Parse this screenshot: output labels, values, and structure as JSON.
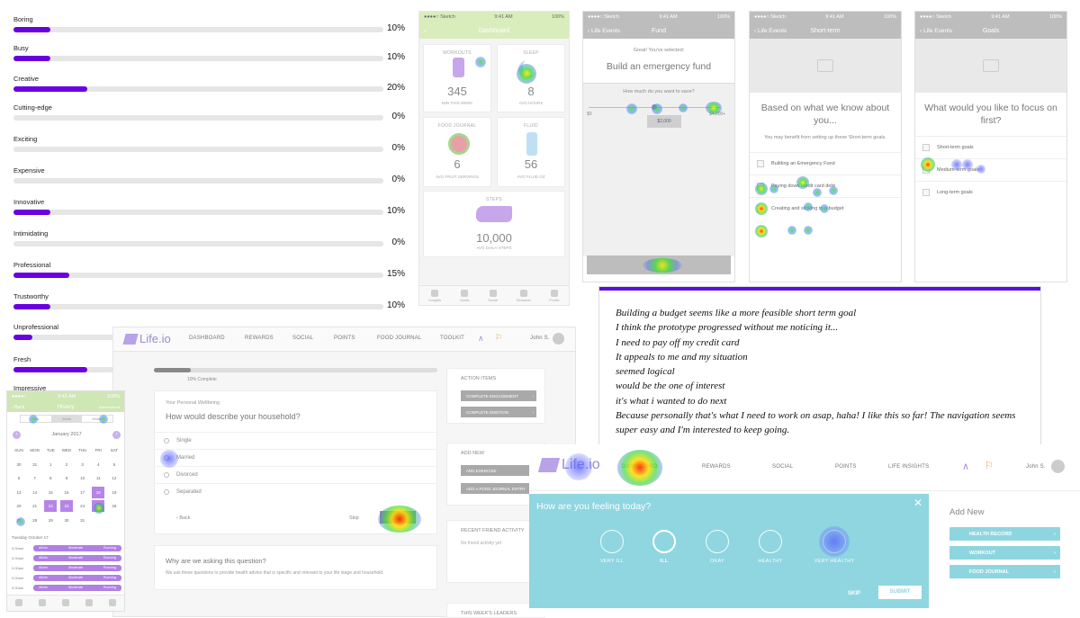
{
  "word_bars": [
    {
      "label": "Boring",
      "pct": "10%",
      "value": 10
    },
    {
      "label": "Busy",
      "pct": "10%",
      "value": 10
    },
    {
      "label": "Creative",
      "pct": "20%",
      "value": 20
    },
    {
      "label": "Cutting-edge",
      "pct": "0%",
      "value": 0
    },
    {
      "label": "Exciting",
      "pct": "0%",
      "value": 0
    },
    {
      "label": "Expensive",
      "pct": "0%",
      "value": 0
    },
    {
      "label": "Innovative",
      "pct": "10%",
      "value": 10
    },
    {
      "label": "Intimidating",
      "pct": "0%",
      "value": 0
    },
    {
      "label": "Professional",
      "pct": "15%",
      "value": 15
    },
    {
      "label": "Trustworthy",
      "pct": "10%",
      "value": 10
    },
    {
      "label": "Unprofessional",
      "pct": "",
      "value": 5
    },
    {
      "label": "Fresh",
      "pct": "",
      "value": 20
    },
    {
      "label": "Impressive",
      "pct": "",
      "value": 0
    }
  ],
  "dashboard": {
    "status": {
      "carrier": "●●●●○ Sketch",
      "time": "9:41 AM",
      "battery": "100%"
    },
    "title": "Dashboard",
    "tiles": [
      {
        "title": "WORKOUTS",
        "value": "345",
        "unit": "MIN THIS WEEK"
      },
      {
        "title": "SLEEP",
        "value": "8",
        "unit": "AVG HOURS"
      },
      {
        "title": "FOOD JOURNAL",
        "value": "6",
        "unit": "AVG FRUIT SERVINGS"
      },
      {
        "title": "FLUID",
        "value": "56",
        "unit": "AVG FLUID OZ"
      },
      {
        "title": "STEPS",
        "value": "10,000",
        "unit": "AVG DAILY STEPS"
      }
    ],
    "tabs": [
      "Insights",
      "Goals",
      "Social",
      "Rewards",
      "Profile"
    ]
  },
  "fund": {
    "status": {
      "carrier": "●●●●○ Sketch",
      "time": "9:41 AM",
      "battery": "100%"
    },
    "back": "Life Events",
    "title": "Fund",
    "selected_label": "Great! You've selected:",
    "goal": "Build an emergency fund",
    "question": "How much do you want to save?",
    "min": "$0",
    "max": "$4,000+",
    "amount": "$2,000"
  },
  "shortterm": {
    "status": {
      "carrier": "●●●●○ Sketch",
      "time": "9:41 AM",
      "battery": "100%"
    },
    "back": "Life Events",
    "title": "Short-term",
    "question": "Based on what we know about you...",
    "sub": "You may benefit from setting up these Short-term goals.",
    "options": [
      "Building an Emergency Fund",
      "Paying down credit card debt",
      "Creating and sticking to a budget"
    ]
  },
  "goals": {
    "status": {
      "carrier": "●●●●○ Sketch",
      "time": "9:41 AM",
      "battery": "100%"
    },
    "back": "Life Events",
    "title": "Goals",
    "question": "What would you like to focus on first?",
    "options": [
      "Short-term goals",
      "Medium-term goals",
      "Long-term goals"
    ]
  },
  "quotes": [
    "Building a budget seems like a more feasible short term goal",
    "I think the prototype progressed without me noticing it...",
    "I need to pay off my credit card",
    "It appeals to me and my situation",
    "seemed logical",
    "would be the one of interest",
    "it's what i wanted to do next",
    "Because personally that's what I need to work on asap, haha! I like this so far! The navigation seems super easy and I'm interested to keep going."
  ],
  "desk1": {
    "logo": "Life.io",
    "nav": [
      "DASHBOARD",
      "REWARDS",
      "SOCIAL",
      "POINTS",
      "FOOD JOURNAL",
      "TOOLKIT"
    ],
    "user": "John S.",
    "progress_text": "10% Complete",
    "progress": 0.1,
    "section": "Your Personal Wellbeing",
    "question": "How would describe your household?",
    "options": [
      "Single",
      "Married",
      "Divorced",
      "Separated"
    ],
    "back": "Back",
    "skip": "Skip",
    "next": "Continue",
    "why_title": "Why are we asking this question?",
    "why_text": "We ask these questions to provide health advice that is specific and relevant to your life stage and household.",
    "action_title": "ACTION ITEMS",
    "actions": [
      "COMPLETE ENGAGEMENT",
      "COMPLETE EMOTION"
    ],
    "addnew_title": "ADD NEW",
    "addnew": [
      "ADD EXERCISE",
      "ADD A FOOD JOURNAL ENTRY"
    ],
    "friend_title": "RECENT FRIEND ACTIVITY",
    "friend_text": "No friend activity yet",
    "leaders_title": "THIS WEEK'S LEADERS"
  },
  "history": {
    "status": {
      "carrier": "●●●●○",
      "time": "9:41 AM",
      "battery": "100%"
    },
    "back": "Back",
    "title": "History",
    "right": "Add Workout",
    "segments": [
      "Day",
      "Week",
      "Month"
    ],
    "month": "January 2017",
    "weekdays": [
      "SUN",
      "MON",
      "TUE",
      "WED",
      "THU",
      "FRI",
      "SAT"
    ],
    "weeks": [
      [
        "30",
        "31",
        "1",
        "2",
        "3",
        "4",
        "5"
      ],
      [
        "6",
        "7",
        "8",
        "9",
        "10",
        "11",
        "12"
      ],
      [
        "13",
        "14",
        "15",
        "16",
        "17",
        "18",
        "19"
      ],
      [
        "20",
        "21",
        "22",
        "23",
        "24",
        "25",
        "26"
      ],
      [
        "27",
        "28",
        "29",
        "30",
        "31",
        "",
        ""
      ]
    ],
    "day_label": "Tuesday October 17",
    "rows": [
      {
        "time": "0:00am",
        "dur": "40min",
        "level": "Moderate",
        "type": "Running"
      },
      {
        "time": "0:00am",
        "dur": "40min",
        "level": "Moderate",
        "type": "Running"
      },
      {
        "time": "0:00am",
        "dur": "40min",
        "level": "Moderate",
        "type": "Running"
      },
      {
        "time": "0:00am",
        "dur": "40min",
        "level": "Moderate",
        "type": "Running"
      },
      {
        "time": "0:00am",
        "dur": "40min",
        "level": "Moderate",
        "type": "Running"
      }
    ]
  },
  "desk2": {
    "logo": "Life.io",
    "nav": [
      "DASHBOARD",
      "REWARDS",
      "SOCIAL",
      "POINTS",
      "LIFE INSIGHTS"
    ],
    "user": "John S.",
    "modal_title": "How are you feeling today?",
    "moods": [
      "VERY ILL",
      "ILL",
      "OKAY",
      "HEALTHY",
      "VERY HEALTHY"
    ],
    "skip": "SKIP",
    "submit": "SUBMIT",
    "addnew_title": "Add New",
    "addnew": [
      "HEALTH RECORD",
      "WORKOUT",
      "FOOD JOURNAL"
    ]
  },
  "colors": {
    "accent": "#6a00e0",
    "mint": "#8fd6e0",
    "lime": "#d9edbc"
  }
}
